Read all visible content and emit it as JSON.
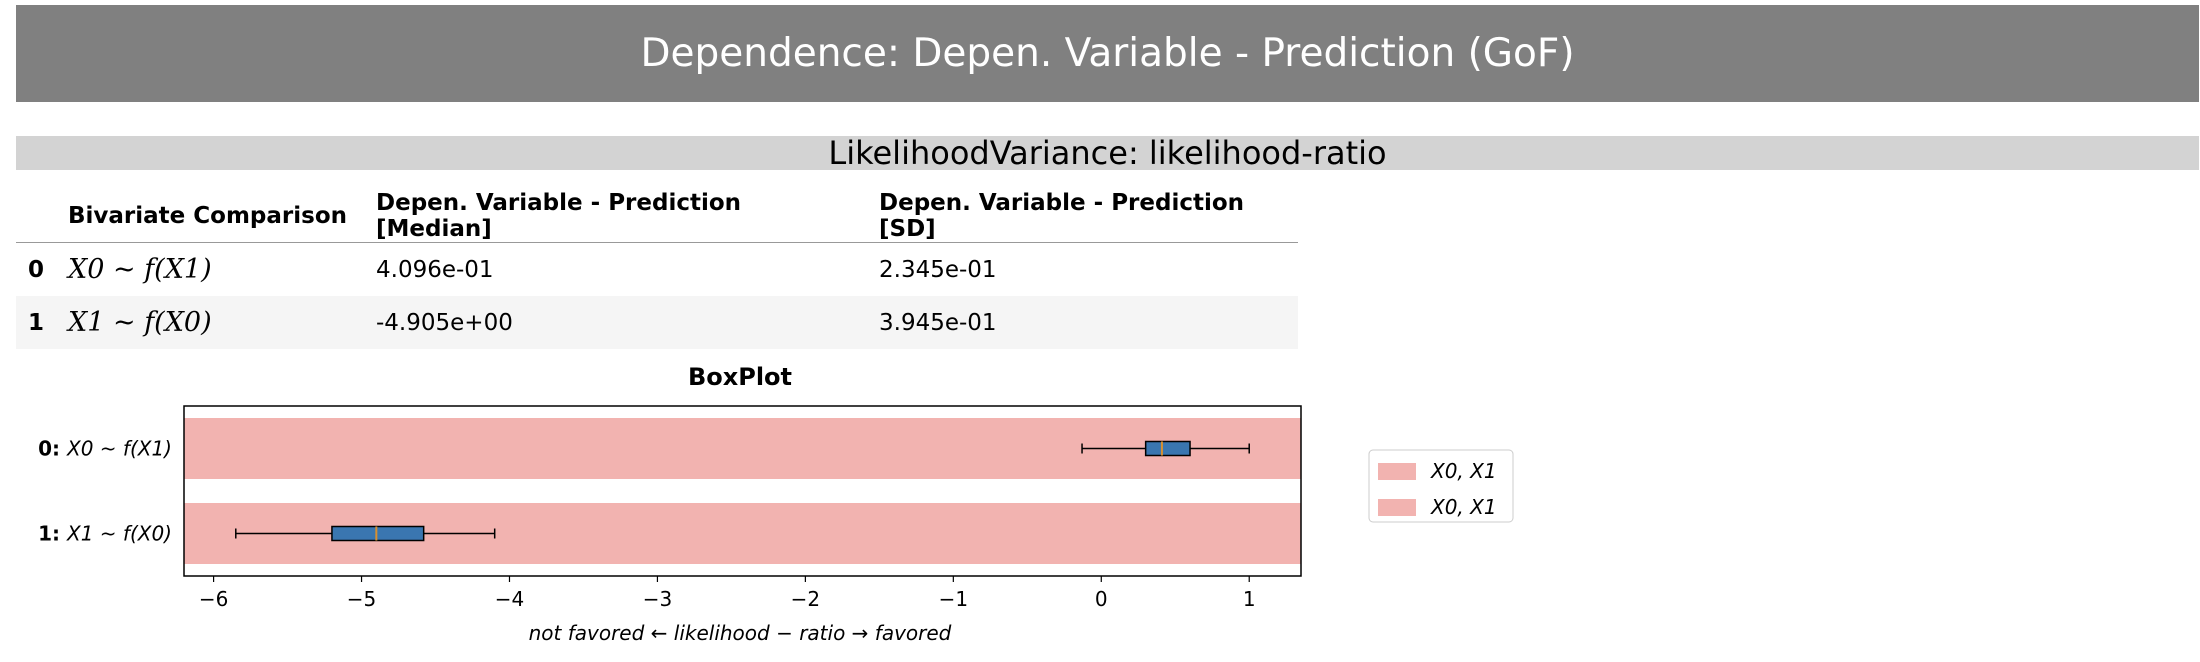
{
  "header": {
    "title": "Dependence: Depen. Variable - Prediction (GoF)"
  },
  "subheader": {
    "title": "LikelihoodVariance: likelihood-ratio"
  },
  "table": {
    "columns": [
      "",
      "Bivariate Comparison",
      "Depen. Variable - Prediction [Median]",
      "Depen. Variable - Prediction [SD]"
    ],
    "rows": [
      {
        "index": "0",
        "comparison": "X0 ~ f(X1)",
        "median": "4.096e-01",
        "sd": "2.345e-01"
      },
      {
        "index": "1",
        "comparison": "X1 ~ f(X0)",
        "median": "-4.905e+00",
        "sd": "3.945e-01"
      }
    ]
  },
  "chart_data": {
    "type": "boxplot",
    "title": "BoxPlot",
    "xlabel": "not favored ← likelihood − ratio → favored",
    "xlim": [
      -6.2,
      1.35
    ],
    "xticks": [
      -6,
      -5,
      -4,
      -3,
      -2,
      -1,
      0,
      1
    ],
    "xtick_labels": [
      "−6",
      "−5",
      "−4",
      "−3",
      "−2",
      "−1",
      "0",
      "1"
    ],
    "categories": [
      {
        "index": "0:",
        "label": "X0 ~ f(X1)",
        "whisker_low": -0.13,
        "q1": 0.3,
        "median": 0.41,
        "q3": 0.6,
        "whisker_high": 1.0
      },
      {
        "index": "1:",
        "label": "X1 ~ f(X0)",
        "whisker_low": -5.85,
        "q1": -5.2,
        "median": -4.9,
        "q3": -4.58,
        "whisker_high": -4.1
      }
    ],
    "legend": {
      "placement": "outside-right",
      "entries": [
        "X0,  X1",
        "X0,  X1"
      ]
    },
    "colors": {
      "band": "#f2b3b0",
      "box": "#3a76b0",
      "median": "#d89030",
      "frame": "#000000"
    }
  }
}
